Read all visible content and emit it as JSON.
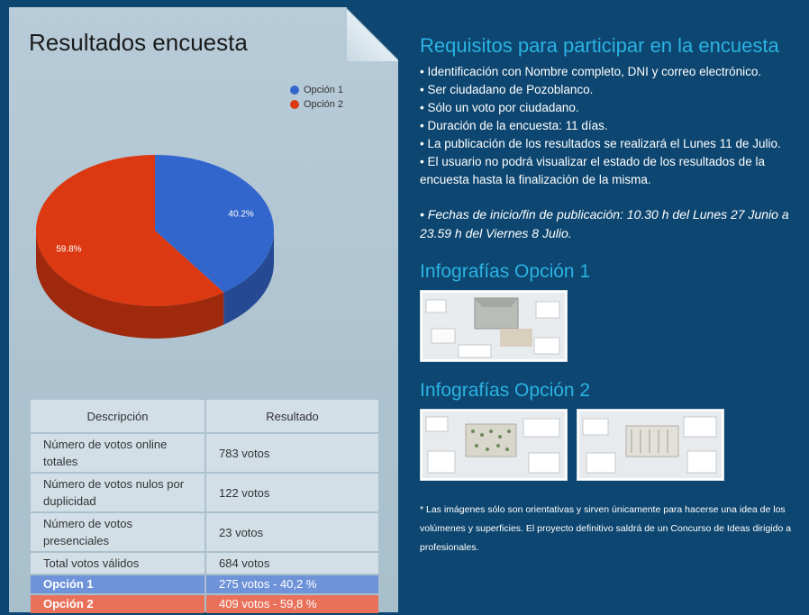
{
  "left": {
    "title": "Resultados encuesta"
  },
  "chart_data": {
    "type": "pie",
    "series": [
      {
        "name": "Opción 1",
        "value": 40.2,
        "label": "40.2%",
        "color": "#3366cc"
      },
      {
        "name": "Opción 2",
        "value": 59.8,
        "label": "59.8%",
        "color": "#dc3912"
      }
    ],
    "legend": "top-right",
    "style": "3d"
  },
  "table": {
    "headers": [
      "Descripción",
      "Resultado"
    ],
    "rows": [
      {
        "desc": "Número de votos online totales",
        "val": "783 votos"
      },
      {
        "desc": "Número de votos nulos por duplicidad",
        "val": "122 votos"
      },
      {
        "desc": "Número de votos presenciales",
        "val": "23 votos"
      },
      {
        "desc": "Total votos válidos",
        "val": "684 votos"
      },
      {
        "desc": "Opción 1",
        "val": "275 votos - 40,2 %"
      },
      {
        "desc": "Opción 2",
        "val": "409 votos - 59,8 %"
      }
    ]
  },
  "right": {
    "req_title": "Requisitos para participar en la encuesta",
    "requirements": [
      "Identificación con Nombre completo, DNI y correo electrónico.",
      "Ser ciudadano de Pozoblanco.",
      "Sólo un voto por ciudadano.",
      "Duración de la encuesta: 11 días.",
      "La publicación de los resultados se realizará el Lunes 11 de Julio.",
      "El usuario no podrá visualizar el estado de los resultados de la encuesta hasta la finalización de la misma."
    ],
    "dates": "• Fechas de inicio/fin de publicación: 10.30 h del Lunes 27 Junio a 23.59 h del Viernes 8 Julio.",
    "info1_title": "Infografías Opción 1",
    "info2_title": "Infografías Opción 2",
    "note": "* Las imágenes sólo son orientativas y sirven únicamente para hacerse una idea de los volúmenes y superficies. El proyecto definitivo saldrá de un Concurso de Ideas dirigido a profesionales."
  }
}
